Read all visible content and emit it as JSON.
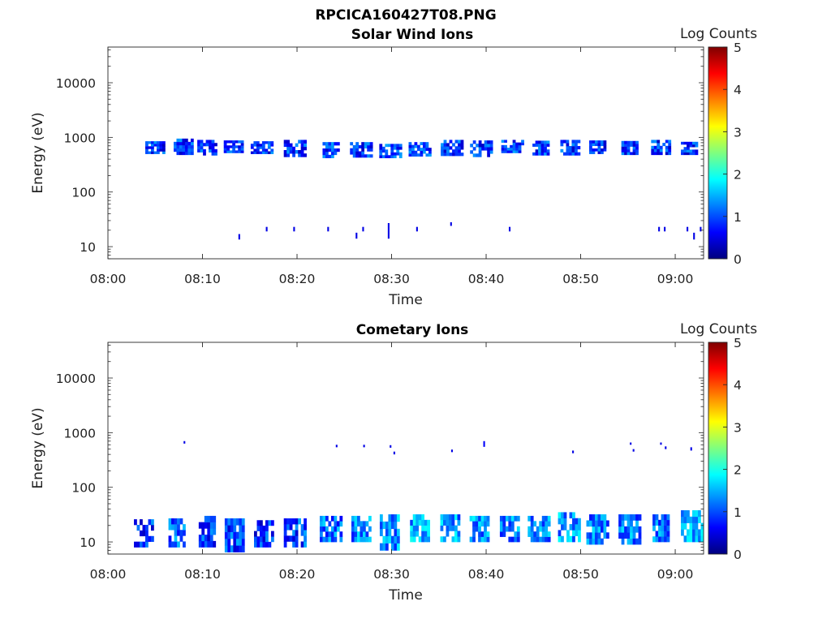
{
  "figure_title": "RPCICA160427T08.PNG",
  "colormap": [
    "#00007f",
    "#0000ff",
    "#007fff",
    "#00ffff",
    "#7fff7f",
    "#ffff00",
    "#ff7f00",
    "#ff0000",
    "#7f0000"
  ],
  "chart_data": [
    {
      "type": "heatmap",
      "title": "Solar Wind Ions",
      "xlabel": "Time",
      "ylabel": "Energy (eV)",
      "x_range_minutes": [
        0,
        63
      ],
      "x_ticks": [
        "08:00",
        "08:10",
        "08:20",
        "08:30",
        "08:40",
        "08:50",
        "09:00"
      ],
      "y_scale": "log",
      "y_range": [
        6,
        45000
      ],
      "y_ticks": [
        "10",
        "100",
        "1000",
        "10000"
      ],
      "colorbar": {
        "label": "Log Counts",
        "range": [
          0,
          5
        ],
        "ticks": [
          "0",
          "1",
          "2",
          "3",
          "4",
          "5"
        ]
      },
      "cell_width_minutes": 0.3,
      "clusters": [
        {
          "t": 5.0,
          "emin": 500,
          "emax": 850,
          "level": 0.9
        },
        {
          "t": 8.0,
          "emin": 480,
          "emax": 950,
          "level": 0.95
        },
        {
          "t": 10.5,
          "emin": 470,
          "emax": 900,
          "level": 0.9
        },
        {
          "t": 13.3,
          "emin": 520,
          "emax": 880,
          "level": 0.85
        },
        {
          "t": 16.3,
          "emin": 500,
          "emax": 850,
          "level": 0.9
        },
        {
          "t": 19.8,
          "emin": 440,
          "emax": 900,
          "level": 0.95
        },
        {
          "t": 23.6,
          "emin": 420,
          "emax": 820,
          "level": 0.95
        },
        {
          "t": 26.8,
          "emin": 430,
          "emax": 820,
          "level": 0.95
        },
        {
          "t": 29.9,
          "emin": 420,
          "emax": 760,
          "level": 0.95
        },
        {
          "t": 33.0,
          "emin": 450,
          "emax": 820,
          "level": 0.95
        },
        {
          "t": 36.4,
          "emin": 460,
          "emax": 900,
          "level": 0.95
        },
        {
          "t": 39.5,
          "emin": 440,
          "emax": 880,
          "level": 0.95
        },
        {
          "t": 42.8,
          "emin": 520,
          "emax": 900,
          "level": 1.0
        },
        {
          "t": 45.8,
          "emin": 470,
          "emax": 870,
          "level": 0.95
        },
        {
          "t": 48.9,
          "emin": 470,
          "emax": 900,
          "level": 0.95
        },
        {
          "t": 51.8,
          "emin": 500,
          "emax": 880,
          "level": 0.9
        },
        {
          "t": 55.2,
          "emin": 480,
          "emax": 860,
          "level": 0.9
        },
        {
          "t": 58.5,
          "emin": 480,
          "emax": 900,
          "level": 0.9
        },
        {
          "t": 61.5,
          "emin": 480,
          "emax": 830,
          "level": 0.9
        }
      ],
      "points": [
        {
          "t": 13.8,
          "emin": 13.5,
          "emax": 17,
          "level": 0.5
        },
        {
          "t": 16.7,
          "emin": 19,
          "emax": 23,
          "level": 0.5
        },
        {
          "t": 19.6,
          "emin": 19,
          "emax": 23,
          "level": 0.5
        },
        {
          "t": 23.2,
          "emin": 19,
          "emax": 23,
          "level": 0.5
        },
        {
          "t": 26.2,
          "emin": 14,
          "emax": 18,
          "level": 0.5
        },
        {
          "t": 26.9,
          "emin": 19,
          "emax": 23,
          "level": 0.5
        },
        {
          "t": 29.6,
          "emin": 14,
          "emax": 27,
          "level": 0.5
        },
        {
          "t": 32.6,
          "emin": 19,
          "emax": 23,
          "level": 0.5
        },
        {
          "t": 36.2,
          "emin": 24,
          "emax": 28,
          "level": 0.5
        },
        {
          "t": 42.4,
          "emin": 19,
          "emax": 23,
          "level": 0.5
        },
        {
          "t": 58.2,
          "emin": 19,
          "emax": 23,
          "level": 0.5
        },
        {
          "t": 58.8,
          "emin": 19,
          "emax": 23,
          "level": 0.5
        },
        {
          "t": 61.2,
          "emin": 19,
          "emax": 23,
          "level": 0.5
        },
        {
          "t": 61.9,
          "emin": 13.5,
          "emax": 18,
          "level": 0.5
        },
        {
          "t": 62.6,
          "emin": 19,
          "emax": 23,
          "level": 0.5
        }
      ]
    },
    {
      "type": "heatmap",
      "title": "Cometary Ions",
      "xlabel": "Time",
      "ylabel": "Energy (eV)",
      "x_range_minutes": [
        0,
        63
      ],
      "x_ticks": [
        "08:00",
        "08:10",
        "08:20",
        "08:30",
        "08:40",
        "08:50",
        "09:00"
      ],
      "y_scale": "log",
      "y_range": [
        6,
        45000
      ],
      "y_ticks": [
        "10",
        "100",
        "1000",
        "10000"
      ],
      "colorbar": {
        "label": "Log Counts",
        "range": [
          0,
          5
        ],
        "ticks": [
          "0",
          "1",
          "2",
          "3",
          "4",
          "5"
        ]
      },
      "cell_width_minutes": 0.3,
      "clusters": [
        {
          "t": 3.8,
          "emin": 8,
          "emax": 26,
          "level": 0.9
        },
        {
          "t": 7.3,
          "emin": 8,
          "emax": 27,
          "level": 1.1
        },
        {
          "t": 10.5,
          "emin": 8,
          "emax": 30,
          "level": 1.0
        },
        {
          "t": 13.4,
          "emin": 6.5,
          "emax": 27,
          "level": 1.0
        },
        {
          "t": 16.5,
          "emin": 8,
          "emax": 25,
          "level": 0.9
        },
        {
          "t": 19.8,
          "emin": 8,
          "emax": 27,
          "level": 1.0
        },
        {
          "t": 23.6,
          "emin": 10,
          "emax": 30,
          "level": 1.2
        },
        {
          "t": 26.8,
          "emin": 10,
          "emax": 30,
          "level": 1.3
        },
        {
          "t": 29.8,
          "emin": 7,
          "emax": 32,
          "level": 1.4
        },
        {
          "t": 33.0,
          "emin": 10,
          "emax": 32,
          "level": 1.5
        },
        {
          "t": 36.2,
          "emin": 10,
          "emax": 32,
          "level": 1.4
        },
        {
          "t": 39.3,
          "emin": 10,
          "emax": 30,
          "level": 1.4
        },
        {
          "t": 42.5,
          "emin": 10,
          "emax": 30,
          "level": 1.3
        },
        {
          "t": 45.6,
          "emin": 10,
          "emax": 30,
          "level": 1.3
        },
        {
          "t": 48.8,
          "emin": 10,
          "emax": 35,
          "level": 1.4
        },
        {
          "t": 51.8,
          "emin": 9,
          "emax": 32,
          "level": 1.3
        },
        {
          "t": 55.2,
          "emin": 9,
          "emax": 32,
          "level": 1.3
        },
        {
          "t": 58.5,
          "emin": 10,
          "emax": 32,
          "level": 1.2
        },
        {
          "t": 61.8,
          "emin": 10,
          "emax": 38,
          "level": 1.4
        }
      ],
      "points": [
        {
          "t": 8.0,
          "emin": 630,
          "emax": 700,
          "level": 0.5
        },
        {
          "t": 24.1,
          "emin": 540,
          "emax": 600,
          "level": 0.5
        },
        {
          "t": 27.0,
          "emin": 540,
          "emax": 600,
          "level": 0.5
        },
        {
          "t": 29.8,
          "emin": 530,
          "emax": 590,
          "level": 0.5
        },
        {
          "t": 30.2,
          "emin": 400,
          "emax": 450,
          "level": 0.5
        },
        {
          "t": 36.3,
          "emin": 440,
          "emax": 490,
          "level": 0.5
        },
        {
          "t": 39.7,
          "emin": 550,
          "emax": 700,
          "level": 0.6
        },
        {
          "t": 49.1,
          "emin": 420,
          "emax": 470,
          "level": 0.5
        },
        {
          "t": 55.2,
          "emin": 600,
          "emax": 660,
          "level": 0.5
        },
        {
          "t": 55.5,
          "emin": 450,
          "emax": 500,
          "level": 0.5
        },
        {
          "t": 58.4,
          "emin": 600,
          "emax": 660,
          "level": 0.5
        },
        {
          "t": 58.9,
          "emin": 500,
          "emax": 560,
          "level": 0.5
        },
        {
          "t": 61.6,
          "emin": 470,
          "emax": 540,
          "level": 0.5
        }
      ]
    }
  ]
}
